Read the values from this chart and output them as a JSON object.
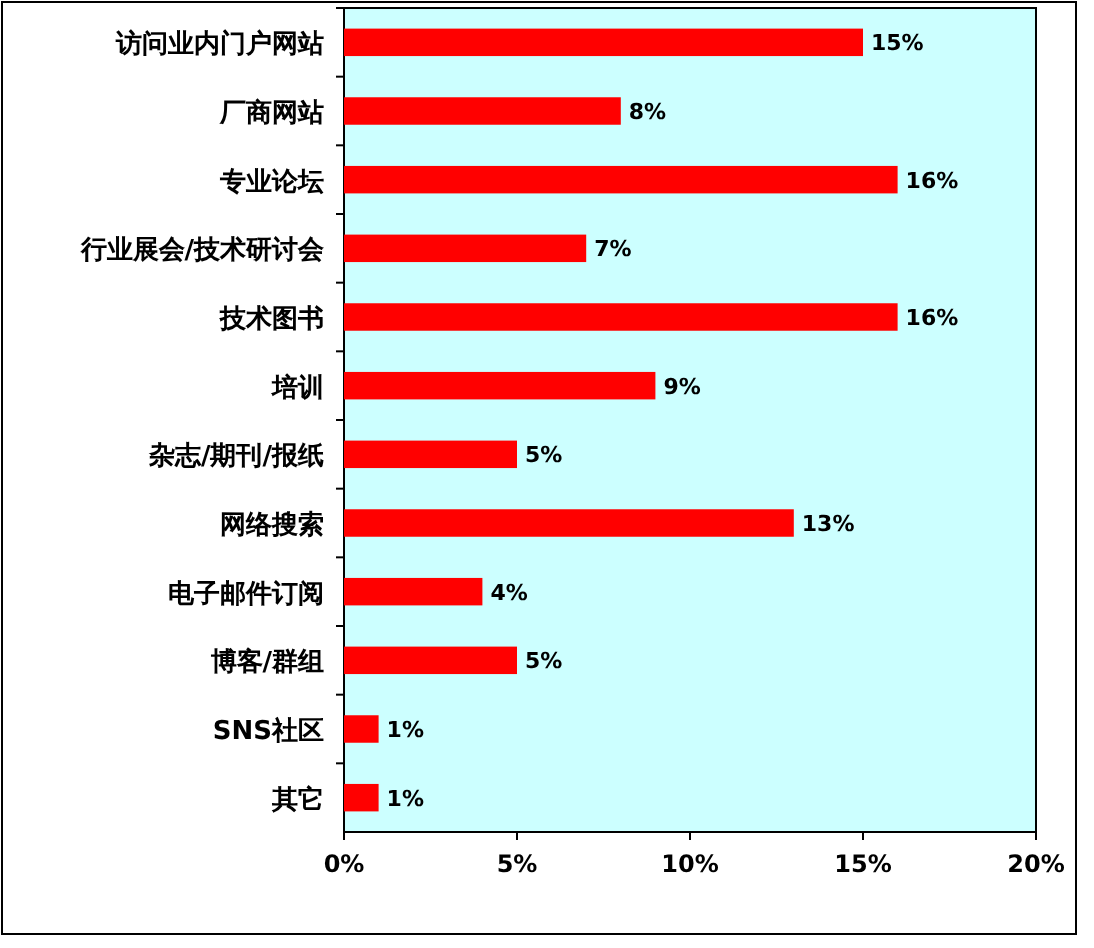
{
  "chart_data": {
    "type": "bar",
    "orientation": "horizontal",
    "categories": [
      "访问业内门户网站",
      "厂商网站",
      "专业论坛",
      "行业展会/技术研讨会",
      "技术图书",
      "培训",
      "杂志/期刊/报纸",
      "网络搜索",
      "电子邮件订阅",
      "博客/群组",
      "SNS社区",
      "其它"
    ],
    "values": [
      15,
      8,
      16,
      7,
      16,
      9,
      5,
      13,
      4,
      5,
      1,
      1
    ],
    "value_labels": [
      "15%",
      "8%",
      "16%",
      "7%",
      "16%",
      "9%",
      "5%",
      "13%",
      "4%",
      "5%",
      "1%",
      "1%"
    ],
    "color": "#ff0000",
    "xlim": [
      0,
      20
    ],
    "xticks": [
      {
        "value": 0,
        "label": "0%"
      },
      {
        "value": 5,
        "label": "5%"
      },
      {
        "value": 10,
        "label": "10%"
      },
      {
        "value": 15,
        "label": "15%"
      },
      {
        "value": 20,
        "label": "20%"
      }
    ],
    "grid": false
  }
}
